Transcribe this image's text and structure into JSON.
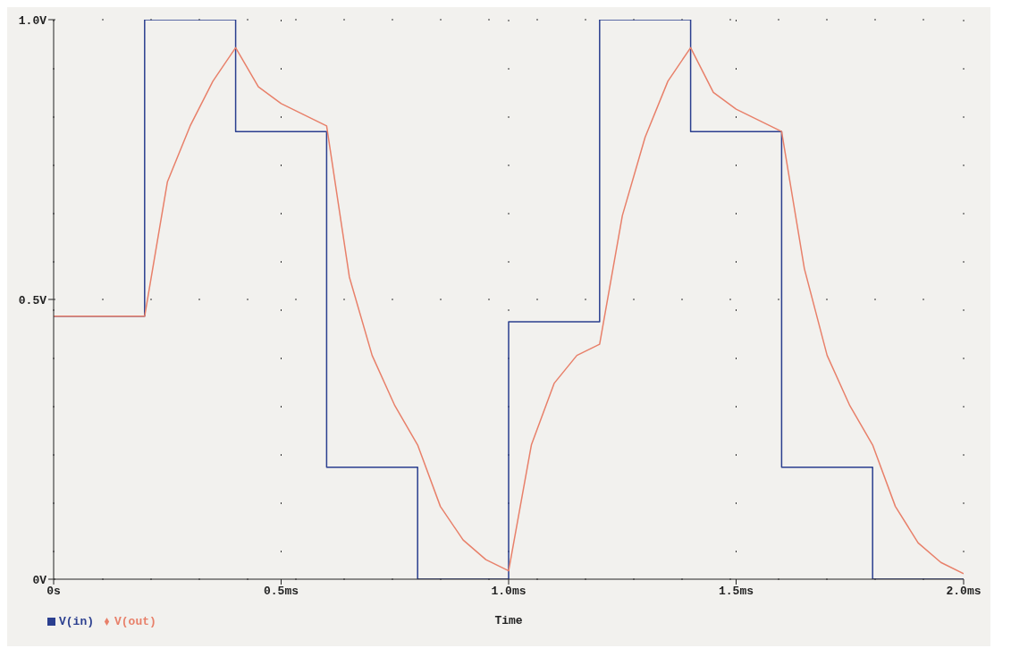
{
  "chart_data": {
    "type": "line",
    "xlabel": "Time",
    "xlim": [
      0,
      2
    ],
    "xticks": [
      {
        "value": 0,
        "label": "0s"
      },
      {
        "value": 0.5,
        "label": "0.5ms"
      },
      {
        "value": 1,
        "label": "1.0ms"
      },
      {
        "value": 1.5,
        "label": "1.5ms"
      },
      {
        "value": 2,
        "label": "2.0ms"
      }
    ],
    "ylim": [
      0,
      1
    ],
    "yticks": [
      {
        "value": 0,
        "label": "0V"
      },
      {
        "value": 0.5,
        "label": "0.5V"
      },
      {
        "value": 1,
        "label": "1.0V"
      }
    ],
    "grid": true,
    "legend": "bottom left",
    "series": [
      {
        "name": "V(in)",
        "type": "step",
        "color": "#2b3f8f",
        "x": [
          0,
          0.2,
          0.4,
          0.6,
          0.8,
          1.0,
          1.2,
          1.4,
          1.6,
          1.8,
          2.0
        ],
        "values": [
          0.47,
          1.0,
          0.8,
          0.2,
          0,
          0.46,
          1.0,
          0.8,
          0.2,
          0,
          0
        ]
      },
      {
        "name": "V(out)",
        "type": "line",
        "color": "#e8806a",
        "x": [
          0,
          0.2,
          0.25,
          0.3,
          0.35,
          0.4,
          0.45,
          0.5,
          0.55,
          0.6,
          0.65,
          0.7,
          0.75,
          0.8,
          0.85,
          0.9,
          0.95,
          1.0,
          1.05,
          1.1,
          1.15,
          1.2,
          1.25,
          1.3,
          1.35,
          1.4,
          1.45,
          1.5,
          1.55,
          1.6,
          1.65,
          1.7,
          1.75,
          1.8,
          1.85,
          1.9,
          1.95,
          2.0
        ],
        "values": [
          0.47,
          0.47,
          0.71,
          0.81,
          0.89,
          0.95,
          0.88,
          0.85,
          0.83,
          0.81,
          0.54,
          0.4,
          0.31,
          0.24,
          0.13,
          0.07,
          0.035,
          0.015,
          0.24,
          0.35,
          0.4,
          0.42,
          0.65,
          0.79,
          0.89,
          0.95,
          0.87,
          0.84,
          0.82,
          0.8,
          0.555,
          0.4,
          0.31,
          0.24,
          0.13,
          0.065,
          0.03,
          0.01
        ]
      }
    ]
  }
}
